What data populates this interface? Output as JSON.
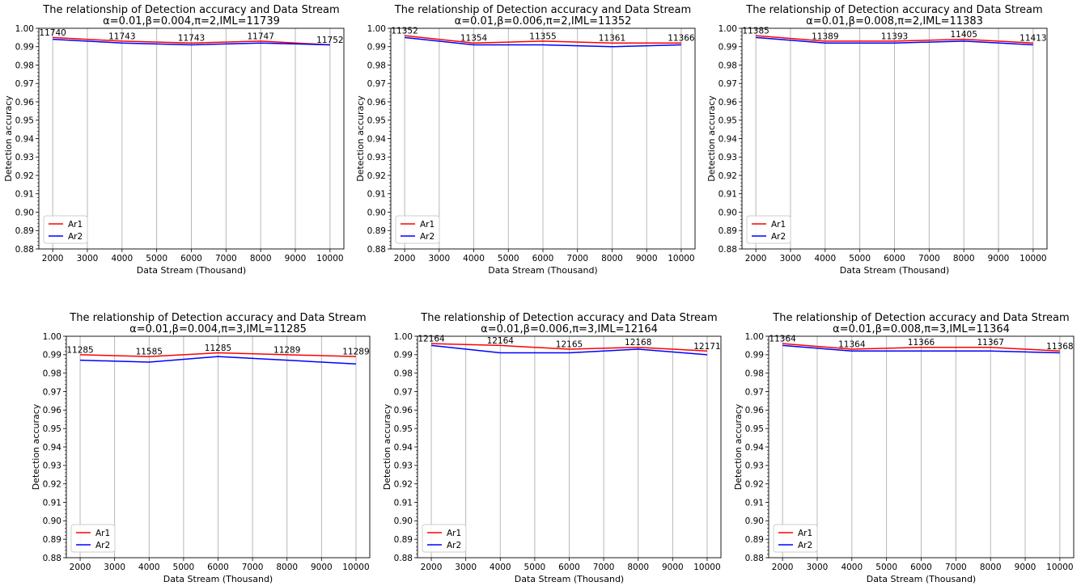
{
  "chart_data": [
    {
      "type": "line",
      "title": "The relationship of Detection accuracy and Data Stream",
      "subtitle": "α=0.01,β=0.004,π=2,IML=11739",
      "xlabel": "Data Stream (Thousand)",
      "ylabel": "Detection accuracy",
      "xticks": [
        "2000",
        "3000",
        "4000",
        "5000",
        "6000",
        "7000",
        "8000",
        "9000",
        "10000"
      ],
      "yticks": [
        "0.88",
        "0.89",
        "0.90",
        "0.91",
        "0.92",
        "0.93",
        "0.94",
        "0.95",
        "0.96",
        "0.97",
        "0.98",
        "0.99",
        "1.00"
      ],
      "xlim": [
        1600,
        10400
      ],
      "ylim": [
        0.88,
        1.0
      ],
      "grid": "vertical",
      "legend_position": "lower-left",
      "x": [
        2000,
        4000,
        6000,
        8000,
        10000
      ],
      "series": [
        {
          "name": "Ar1",
          "color": "#ff0000",
          "values": [
            0.995,
            0.993,
            0.992,
            0.993,
            0.991
          ]
        },
        {
          "name": "Ar2",
          "color": "#0000ff",
          "values": [
            0.994,
            0.992,
            0.991,
            0.992,
            0.991
          ]
        }
      ],
      "point_labels": [
        "11740",
        "11743",
        "11743",
        "11747",
        "11752"
      ]
    },
    {
      "type": "line",
      "title": "The relationship of Detection accuracy and Data Stream",
      "subtitle": "α=0.01,β=0.006,π=2,IML=11352",
      "xlabel": "Data Stream (Thousand)",
      "ylabel": "Detection accuracy",
      "xticks": [
        "2000",
        "3000",
        "4000",
        "5000",
        "6000",
        "7000",
        "8000",
        "9000",
        "10000"
      ],
      "yticks": [
        "0.88",
        "0.89",
        "0.90",
        "0.91",
        "0.92",
        "0.93",
        "0.94",
        "0.95",
        "0.96",
        "0.97",
        "0.98",
        "0.99",
        "1.00"
      ],
      "xlim": [
        1600,
        10400
      ],
      "ylim": [
        0.88,
        1.0
      ],
      "grid": "vertical",
      "legend_position": "lower-left",
      "x": [
        2000,
        4000,
        6000,
        8000,
        10000
      ],
      "series": [
        {
          "name": "Ar1",
          "color": "#ff0000",
          "values": [
            0.996,
            0.992,
            0.993,
            0.992,
            0.992
          ]
        },
        {
          "name": "Ar2",
          "color": "#0000ff",
          "values": [
            0.995,
            0.991,
            0.991,
            0.99,
            0.991
          ]
        }
      ],
      "point_labels": [
        "11352",
        "11354",
        "11355",
        "11361",
        "11366"
      ]
    },
    {
      "type": "line",
      "title": "The relationship of Detection accuracy and Data Stream",
      "subtitle": "α=0.01,β=0.008,π=2,IML=11383",
      "xlabel": "Data Stream (Thousand)",
      "ylabel": "Detection accuracy",
      "xticks": [
        "2000",
        "3000",
        "4000",
        "5000",
        "6000",
        "7000",
        "8000",
        "9000",
        "10000"
      ],
      "yticks": [
        "0.88",
        "0.89",
        "0.90",
        "0.91",
        "0.92",
        "0.93",
        "0.94",
        "0.95",
        "0.96",
        "0.97",
        "0.98",
        "0.99",
        "1.00"
      ],
      "xlim": [
        1600,
        10400
      ],
      "ylim": [
        0.88,
        1.0
      ],
      "grid": "vertical",
      "legend_position": "lower-left",
      "x": [
        2000,
        4000,
        6000,
        8000,
        10000
      ],
      "series": [
        {
          "name": "Ar1",
          "color": "#ff0000",
          "values": [
            0.996,
            0.993,
            0.993,
            0.994,
            0.992
          ]
        },
        {
          "name": "Ar2",
          "color": "#0000ff",
          "values": [
            0.995,
            0.992,
            0.992,
            0.993,
            0.991
          ]
        }
      ],
      "point_labels": [
        "11385",
        "11389",
        "11393",
        "11405",
        "11413"
      ]
    },
    {
      "type": "line",
      "title": "The relationship of Detection accuracy and Data Stream",
      "subtitle": "α=0.01,β=0.004,π=3,IML=11285",
      "xlabel": "Data Stream (Thousand)",
      "ylabel": "Detection accuracy",
      "xticks": [
        "2000",
        "3000",
        "4000",
        "5000",
        "6000",
        "7000",
        "8000",
        "9000",
        "10000"
      ],
      "yticks": [
        "0.88",
        "0.89",
        "0.90",
        "0.91",
        "0.92",
        "0.93",
        "0.94",
        "0.95",
        "0.96",
        "0.97",
        "0.98",
        "0.99",
        "1.00"
      ],
      "xlim": [
        1600,
        10400
      ],
      "ylim": [
        0.88,
        1.0
      ],
      "grid": "vertical",
      "legend_position": "lower-left",
      "x": [
        2000,
        4000,
        6000,
        8000,
        10000
      ],
      "series": [
        {
          "name": "Ar1",
          "color": "#ff0000",
          "values": [
            0.99,
            0.989,
            0.991,
            0.99,
            0.989
          ]
        },
        {
          "name": "Ar2",
          "color": "#0000ff",
          "values": [
            0.987,
            0.986,
            0.989,
            0.987,
            0.985
          ]
        }
      ],
      "point_labels": [
        "11285",
        "11585",
        "11285",
        "11289",
        "11289"
      ]
    },
    {
      "type": "line",
      "title": "The relationship of Detection accuracy and Data Stream",
      "subtitle": "α=0.01,β=0.006,π=3,IML=12164",
      "xlabel": "Data Stream (Thousand)",
      "ylabel": "Detection accuracy",
      "xticks": [
        "2000",
        "3000",
        "4000",
        "5000",
        "6000",
        "7000",
        "8000",
        "9000",
        "10000"
      ],
      "yticks": [
        "0.88",
        "0.89",
        "0.90",
        "0.91",
        "0.92",
        "0.93",
        "0.94",
        "0.95",
        "0.96",
        "0.97",
        "0.98",
        "0.99",
        "1.00"
      ],
      "xlim": [
        1600,
        10400
      ],
      "ylim": [
        0.88,
        1.0
      ],
      "grid": "vertical",
      "legend_position": "lower-left",
      "x": [
        2000,
        4000,
        6000,
        8000,
        10000
      ],
      "series": [
        {
          "name": "Ar1",
          "color": "#ff0000",
          "values": [
            0.996,
            0.995,
            0.993,
            0.994,
            0.992
          ]
        },
        {
          "name": "Ar2",
          "color": "#0000ff",
          "values": [
            0.995,
            0.991,
            0.991,
            0.993,
            0.99
          ]
        }
      ],
      "point_labels": [
        "12164",
        "12164",
        "12165",
        "12168",
        "12171"
      ]
    },
    {
      "type": "line",
      "title": "The relationship of Detection accuracy and Data Stream",
      "subtitle": "α=0.01,β=0.008,π=3,IML=11364",
      "xlabel": "Data Stream (Thousand)",
      "ylabel": "Detection accuracy",
      "xticks": [
        "2000",
        "3000",
        "4000",
        "5000",
        "6000",
        "7000",
        "8000",
        "9000",
        "10000"
      ],
      "yticks": [
        "0.88",
        "0.89",
        "0.90",
        "0.91",
        "0.92",
        "0.93",
        "0.94",
        "0.95",
        "0.96",
        "0.97",
        "0.98",
        "0.99",
        "1.00"
      ],
      "xlim": [
        1600,
        10400
      ],
      "ylim": [
        0.88,
        1.0
      ],
      "grid": "vertical",
      "legend_position": "lower-left",
      "x": [
        2000,
        4000,
        6000,
        8000,
        10000
      ],
      "series": [
        {
          "name": "Ar1",
          "color": "#ff0000",
          "values": [
            0.996,
            0.993,
            0.994,
            0.994,
            0.992
          ]
        },
        {
          "name": "Ar2",
          "color": "#0000ff",
          "values": [
            0.995,
            0.992,
            0.992,
            0.992,
            0.991
          ]
        }
      ],
      "point_labels": [
        "11364",
        "11364",
        "11366",
        "11367",
        "11368"
      ]
    }
  ]
}
